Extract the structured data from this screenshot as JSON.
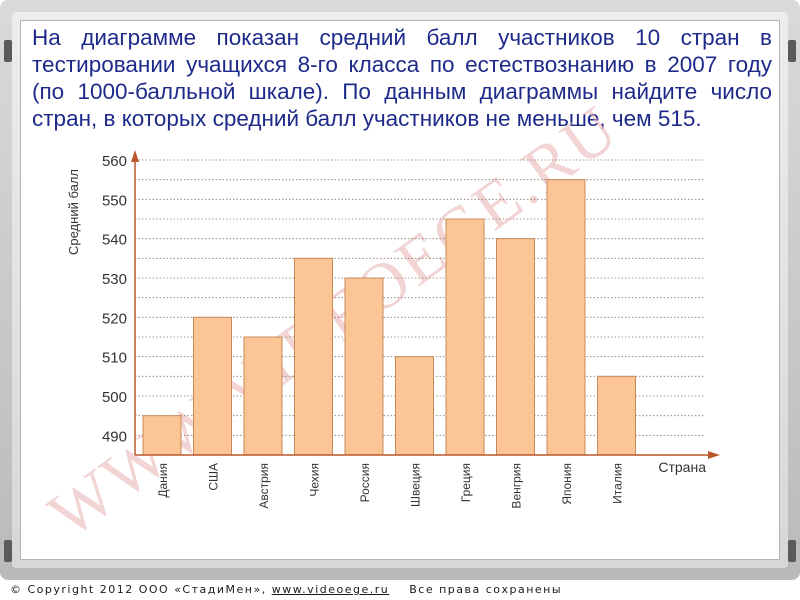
{
  "problem": {
    "text": "На диаграмме показан средний балл участников 10 стран в тестировании учащихся 8-го класса по естествознанию в 2007 году (по 1000-балльной шкале).  По данным диаграммы найдите число стран, в которых средний балл участников не меньше, чем 515."
  },
  "watermark": "WWW.VIDEOEGE.RU",
  "footer": {
    "copyright_prefix": "© Copyright 2012 ООО «СтадиМен», ",
    "site": "www.videoege.ru",
    "rights": "    Все права сохранены"
  },
  "colors": {
    "bar_fill": "#fbc596",
    "bar_stroke": "#c88a58",
    "axis": "#b9592b",
    "gridline": "#8a7a6a",
    "problem_text": "#1e2a8a",
    "watermark": "#e8b0b0"
  },
  "chart_data": {
    "type": "bar",
    "title": "",
    "xlabel": "Страна",
    "ylabel": "Средний балл",
    "categories": [
      "Дания",
      "США",
      "Австрия",
      "Чехия",
      "Россия",
      "Швеция",
      "Греция",
      "Венгрия",
      "Япония",
      "Италия"
    ],
    "values": [
      495,
      520,
      515,
      535,
      530,
      510,
      545,
      540,
      555,
      505
    ],
    "ylim": [
      485,
      560
    ],
    "yticks": [
      490,
      500,
      510,
      520,
      530,
      540,
      550,
      560
    ],
    "grid": true
  }
}
